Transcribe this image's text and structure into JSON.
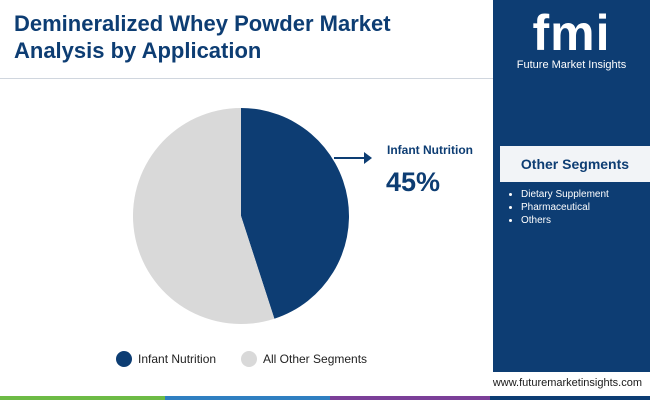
{
  "chart_data": {
    "type": "pie",
    "title": "Demineralized Whey Powder Market Analysis by Application",
    "categories": [
      "Infant Nutrition",
      "All Other Segments"
    ],
    "values": [
      45,
      55
    ],
    "value_labels": [
      "45%",
      null
    ],
    "colors": [
      "#0d3d73",
      "#d9d9d9"
    ]
  },
  "brand": {
    "logo": "fmi",
    "name": "Future Market Insights"
  },
  "side_panel": {
    "title": "Other Segments",
    "items": [
      "Dietary Supplement",
      "Pharmaceutical",
      "Others"
    ]
  },
  "footer": "www.futuremarketinsights.com"
}
